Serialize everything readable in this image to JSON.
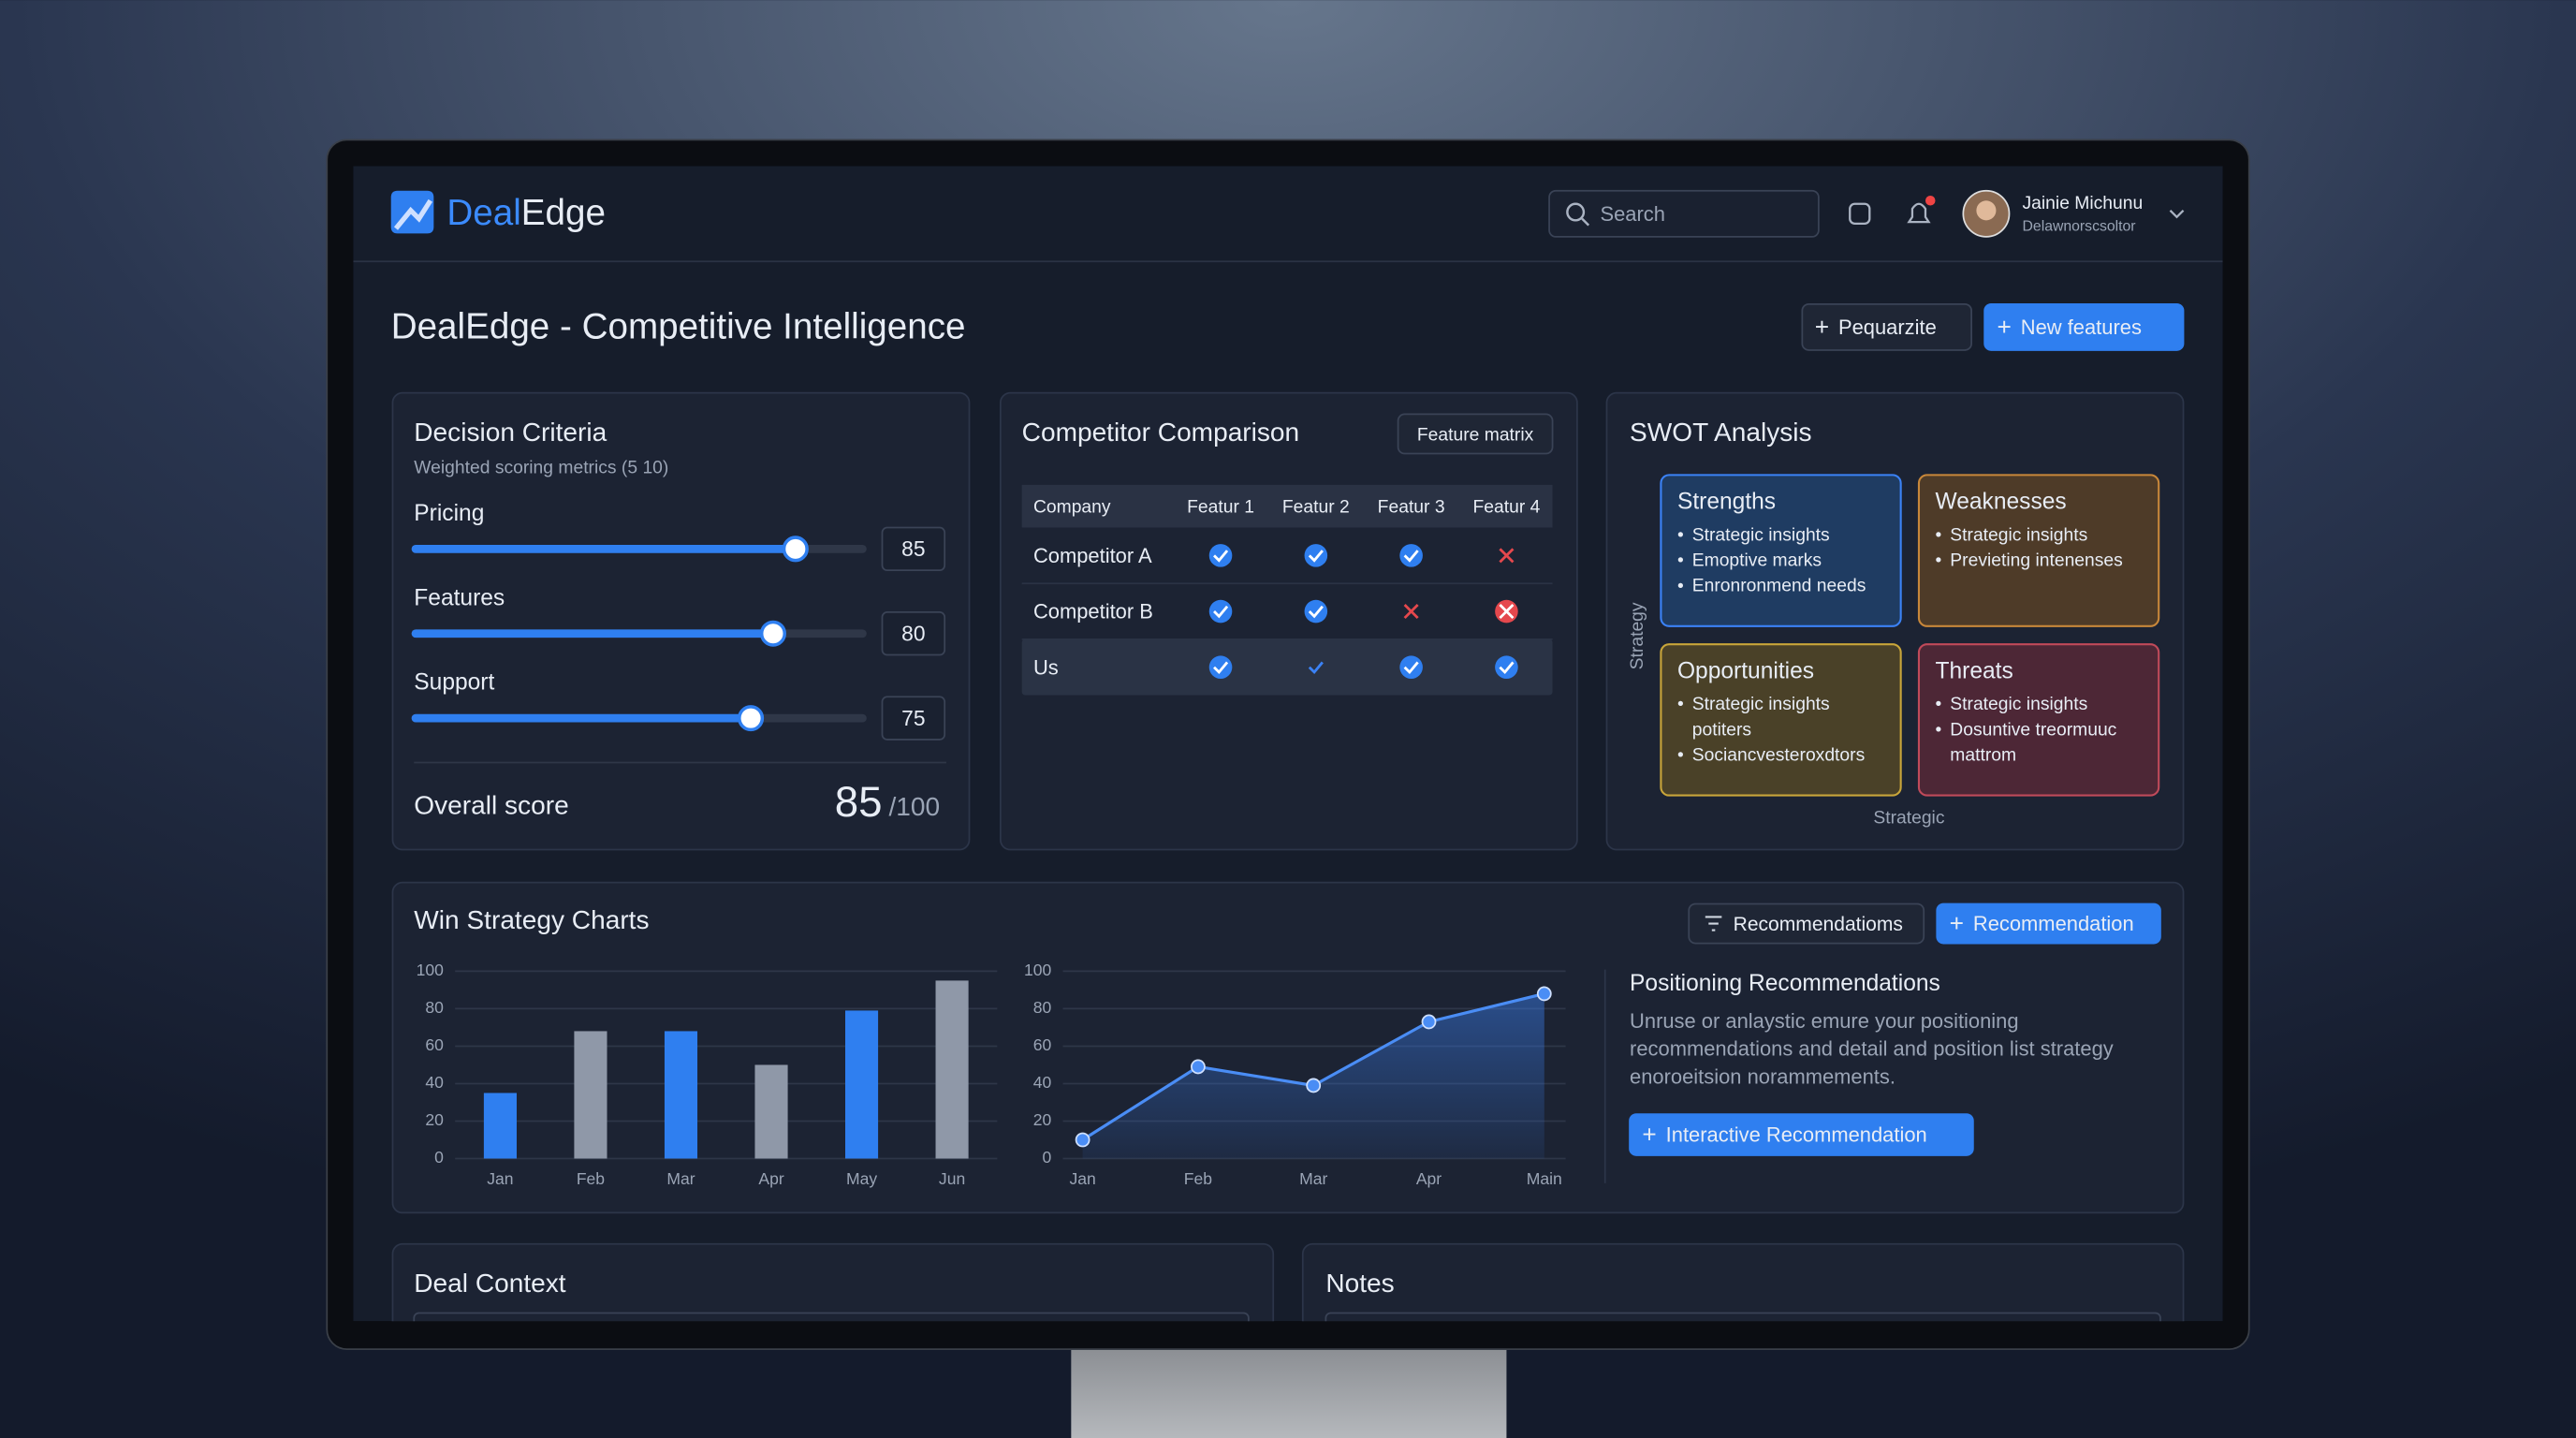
{
  "header": {
    "logo": [
      "Deal",
      "Edge"
    ],
    "search_placeholder": "Search",
    "user": {
      "name": "Jainie Michunu",
      "role": "Delawnorscsoltor"
    }
  },
  "page": {
    "title": "DealEdge - Competitive Intelligence",
    "actions": [
      "Pequarzite",
      "New features"
    ]
  },
  "decision_criteria": {
    "title": "Decision Criteria",
    "subtitle": "Weighted scoring metrics (5 10)",
    "scale": [
      0,
      100
    ],
    "criteria": [
      {
        "label": "Pricing",
        "value": 85
      },
      {
        "label": "Features",
        "value": 80
      },
      {
        "label": "Support",
        "value": 75
      }
    ],
    "overall": {
      "label": "Overall score",
      "value": 85,
      "max_label": "/100"
    }
  },
  "competitor_comparison": {
    "title": "Competitor Comparison",
    "action": "Feature matrix",
    "columns": [
      "Company",
      "Featur 1",
      "Featur 2",
      "Featur 3",
      "Featur 4"
    ],
    "rows": [
      {
        "company": "Competitor A",
        "features": [
          "check",
          "check",
          "check",
          "cross"
        ]
      },
      {
        "company": "Competitor B",
        "features": [
          "check",
          "check",
          "cross",
          "cross-circle"
        ]
      },
      {
        "company": "Us",
        "features": [
          "check",
          "check-plain",
          "check",
          "check"
        ],
        "highlight": true
      }
    ]
  },
  "swot": {
    "title": "SWOT Analysis",
    "y_axis_label": "Strategy",
    "x_axis_label": "Strategic",
    "quadrants": [
      {
        "title": "Strengths",
        "items": [
          "Strategic insights",
          "Emoptive marks",
          "Enronronmend needs"
        ],
        "color": "#3b82f6",
        "fill": "#1f3c62"
      },
      {
        "title": "Weaknesses",
        "items": [
          "Strategic insights",
          "Previeting intenenses"
        ],
        "color": "#c8873a",
        "fill": "#4e3b28"
      },
      {
        "title": "Opportunities",
        "items": [
          "Strategic insights potiters",
          "Sociancvesteroxdtors"
        ],
        "color": "#c8a53a",
        "fill": "#4a4128"
      },
      {
        "title": "Threats",
        "items": [
          "Strategic insights",
          "Dosuntive treormuuc mattrom"
        ],
        "color": "#c04a5a",
        "fill": "#4d2736"
      }
    ]
  },
  "win_strategy": {
    "title": "Win Strategy Charts",
    "actions": [
      "Recommendatioms",
      "Recommendation"
    ],
    "positioning": {
      "title": "Positioning Recommendations",
      "text": "Unruse or anlaystic emure your positioning recommendations and detail and position list strategy enoroeitsion norammements.",
      "action": "Interactive Recommendation"
    }
  },
  "chart_data": [
    {
      "type": "bar",
      "categories": [
        "Jan",
        "Feb",
        "Mar",
        "Apr",
        "May",
        "Jun"
      ],
      "values": [
        35,
        68,
        68,
        50,
        79,
        95
      ],
      "colors": [
        "#2f7ff0",
        "#8f98a8",
        "#2f7ff0",
        "#8f98a8",
        "#2f7ff0",
        "#8f98a8"
      ],
      "ylim": [
        0,
        100
      ],
      "yticks": [
        0,
        20,
        40,
        60,
        80,
        100
      ],
      "grid": true
    },
    {
      "type": "line",
      "categories": [
        "Jan",
        "Feb",
        "Mar",
        "Apr",
        "Main"
      ],
      "values": [
        10,
        49,
        39,
        73,
        88
      ],
      "color": "#4a8df5",
      "ylim": [
        0,
        100
      ],
      "yticks": [
        0,
        20,
        40,
        60,
        80,
        100
      ],
      "grid": true,
      "area": true
    }
  ],
  "deal_context": {
    "title": "Deal Context"
  },
  "notes": {
    "title": "Notes"
  }
}
